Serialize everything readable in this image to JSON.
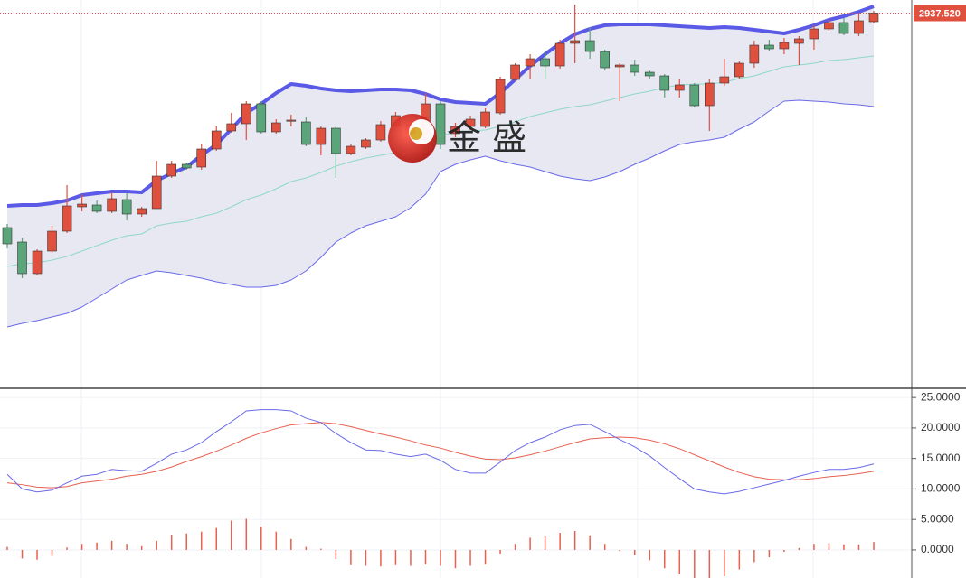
{
  "chart_data": [
    {
      "type": "candlestick",
      "ylim": [
        2522,
        2952
      ],
      "up_color": "#e0503f",
      "down_color": "#5aa57a",
      "open": [
        2700,
        2684,
        2649,
        2674,
        2696,
        2723,
        2725,
        2718,
        2731,
        2715,
        2721,
        2757,
        2770,
        2767,
        2787,
        2807,
        2815,
        2837,
        2806,
        2818,
        2817,
        2792,
        2810,
        2782,
        2789,
        2797,
        2812,
        2804,
        2797,
        2837,
        2804,
        2812,
        2812,
        2827,
        2864,
        2879,
        2887,
        2879,
        2904,
        2907,
        2895,
        2878,
        2880,
        2872,
        2868,
        2852,
        2858,
        2835,
        2860,
        2867,
        2882,
        2902,
        2898,
        2904,
        2909,
        2920,
        2927,
        2915,
        2928
      ],
      "high": [
        2704,
        2689,
        2676,
        2702,
        2747,
        2737,
        2730,
        2739,
        2738,
        2723,
        2774,
        2774,
        2772,
        2792,
        2812,
        2827,
        2840,
        2840,
        2820,
        2825,
        2822,
        2812,
        2812,
        2792,
        2799,
        2818,
        2828,
        2818,
        2849,
        2840,
        2816,
        2824,
        2832,
        2867,
        2882,
        2892,
        2894,
        2908,
        2947,
        2922,
        2897,
        2882,
        2886,
        2874,
        2870,
        2864,
        2860,
        2864,
        2887,
        2884,
        2907,
        2908,
        2910,
        2912,
        2924,
        2930,
        2932,
        2937,
        2940
      ],
      "low": [
        2677,
        2644,
        2647,
        2672,
        2694,
        2718,
        2716,
        2716,
        2708,
        2712,
        2721,
        2755,
        2764,
        2764,
        2785,
        2805,
        2797,
        2804,
        2804,
        2812,
        2790,
        2780,
        2755,
        2780,
        2787,
        2795,
        2810,
        2800,
        2794,
        2787,
        2800,
        2808,
        2810,
        2825,
        2862,
        2864,
        2864,
        2876,
        2882,
        2887,
        2874,
        2840,
        2868,
        2864,
        2844,
        2844,
        2833,
        2807,
        2857,
        2865,
        2877,
        2896,
        2892,
        2880,
        2897,
        2918,
        2913,
        2912,
        2926
      ],
      "close": [
        2682,
        2649,
        2674,
        2696,
        2724,
        2726,
        2718,
        2732,
        2715,
        2721,
        2757,
        2770,
        2766,
        2787,
        2807,
        2815,
        2837,
        2806,
        2816,
        2819,
        2792,
        2810,
        2782,
        2790,
        2797,
        2814,
        2824,
        2814,
        2837,
        2792,
        2812,
        2820,
        2828,
        2864,
        2880,
        2887,
        2879,
        2904,
        2907,
        2895,
        2877,
        2880,
        2872,
        2868,
        2852,
        2858,
        2835,
        2860,
        2867,
        2882,
        2902,
        2898,
        2905,
        2909,
        2920,
        2927,
        2915,
        2929,
        2937.52
      ],
      "upper": {
        "color": "#5a5ae6",
        "values": [
          2724,
          2725,
          2725,
          2727,
          2730,
          2736,
          2738,
          2740,
          2740,
          2739,
          2752,
          2760,
          2767,
          2780,
          2792,
          2809,
          2827,
          2837,
          2849,
          2859,
          2857,
          2854,
          2852,
          2851,
          2852,
          2853,
          2853,
          2852,
          2848,
          2842,
          2839,
          2838,
          2837,
          2849,
          2864,
          2879,
          2892,
          2904,
          2914,
          2920,
          2924,
          2925,
          2925,
          2925,
          2924,
          2923,
          2922,
          2921,
          2922,
          2921,
          2919,
          2917,
          2915,
          2919,
          2924,
          2930,
          2934,
          2939,
          2945
        ]
      },
      "middle": {
        "color": "#8fd8c8",
        "values": [
          2657,
          2660,
          2661,
          2664,
          2668,
          2674,
          2680,
          2686,
          2691,
          2693,
          2702,
          2705,
          2707,
          2712,
          2716,
          2723,
          2731,
          2736,
          2743,
          2751,
          2755,
          2761,
          2768,
          2773,
          2777,
          2780,
          2783,
          2787,
          2793,
          2802,
          2805,
          2807,
          2808,
          2812,
          2817,
          2823,
          2827,
          2831,
          2834,
          2836,
          2840,
          2844,
          2848,
          2851,
          2855,
          2858,
          2859,
          2859,
          2861,
          2865,
          2868,
          2873,
          2878,
          2880,
          2882,
          2885,
          2886,
          2888,
          2890
        ]
      },
      "lower": {
        "color": "#6a6ae8",
        "values": [
          2590,
          2594,
          2597,
          2601,
          2605,
          2612,
          2622,
          2632,
          2642,
          2647,
          2652,
          2650,
          2647,
          2644,
          2640,
          2637,
          2634,
          2634,
          2636,
          2642,
          2652,
          2667,
          2684,
          2694,
          2702,
          2707,
          2712,
          2722,
          2737,
          2762,
          2770,
          2775,
          2779,
          2774,
          2770,
          2767,
          2762,
          2757,
          2754,
          2752,
          2756,
          2762,
          2770,
          2777,
          2785,
          2792,
          2795,
          2797,
          2800,
          2809,
          2817,
          2829,
          2840,
          2841,
          2840,
          2839,
          2837,
          2836,
          2834
        ]
      },
      "band_fill": "#e6e6f2",
      "last_price": {
        "value": 2937.52,
        "label": "2937.520"
      },
      "watermark": "金 盛"
    },
    {
      "type": "macd",
      "ylim": [
        -4.6,
        26.5
      ],
      "yticks": [
        {
          "value": 25,
          "label": "25.0000"
        },
        {
          "value": 20,
          "label": "20.0000"
        },
        {
          "value": 15,
          "label": "15.0000"
        },
        {
          "value": 10,
          "label": "10.0000"
        },
        {
          "value": 5,
          "label": "5.0000"
        },
        {
          "value": 0,
          "label": "0.0000"
        }
      ],
      "dif": {
        "color": "#6a6ae8",
        "values": [
          12.4,
          10,
          9.5,
          9.8,
          11,
          12.1,
          12.4,
          13.2,
          13,
          12.9,
          14.2,
          15.7,
          16.4,
          17.6,
          19.4,
          21,
          22.8,
          23,
          23,
          22.8,
          21.6,
          20.9,
          19.1,
          17.6,
          16.4,
          16.3,
          15.7,
          15.3,
          15.7,
          14.7,
          13.2,
          12.6,
          12.6,
          14.4,
          16.3,
          17.6,
          18.5,
          19.7,
          20.4,
          20.6,
          19.4,
          18.1,
          16.9,
          15.4,
          13.5,
          11.7,
          10,
          9.5,
          9.2,
          9.6,
          10.2,
          10.8,
          11.4,
          12.1,
          12.7,
          13.2,
          13.2,
          13.5,
          14.1
        ]
      },
      "dea": {
        "color": "#e8604f",
        "values": [
          11,
          10.7,
          10.3,
          10.2,
          10.4,
          11,
          11.3,
          11.6,
          12.1,
          12.4,
          12.9,
          13.6,
          14.5,
          15.3,
          16.2,
          17.2,
          18.3,
          19.2,
          19.9,
          20.5,
          20.7,
          20.9,
          20.7,
          20.2,
          19.6,
          19,
          18.5,
          17.9,
          17.2,
          16.7,
          16,
          15.4,
          14.9,
          14.8,
          15.1,
          15.6,
          16.2,
          16.9,
          17.6,
          18.2,
          18.4,
          18.5,
          18.4,
          18,
          17.4,
          16.6,
          15.6,
          14.6,
          13.6,
          12.7,
          12,
          11.6,
          11.5,
          11.5,
          11.7,
          12,
          12.2,
          12.5,
          12.9
        ]
      },
      "histogram": {
        "color": "#e8604f",
        "values": [
          0.5,
          -1.4,
          -1.6,
          -1,
          0.4,
          1,
          1.2,
          1.5,
          1,
          0.6,
          1.5,
          2.5,
          2.7,
          3,
          3.6,
          4.8,
          5.1,
          3.8,
          3,
          1.8,
          0.5,
          0.2,
          -1.5,
          -2.5,
          -2.6,
          -2.7,
          -2.5,
          -2.6,
          -2.4,
          -2.6,
          -3,
          -2.6,
          -2.4,
          -0.6,
          1,
          2,
          2.2,
          2.8,
          3.1,
          2.4,
          1,
          -0.2,
          -0.8,
          -1.7,
          -3,
          -4,
          -4.8,
          -5,
          -4.3,
          -3.2,
          -2,
          -1.2,
          -0.3,
          0.3,
          1,
          1.1,
          0.9,
          0.9,
          1.3
        ]
      }
    }
  ]
}
